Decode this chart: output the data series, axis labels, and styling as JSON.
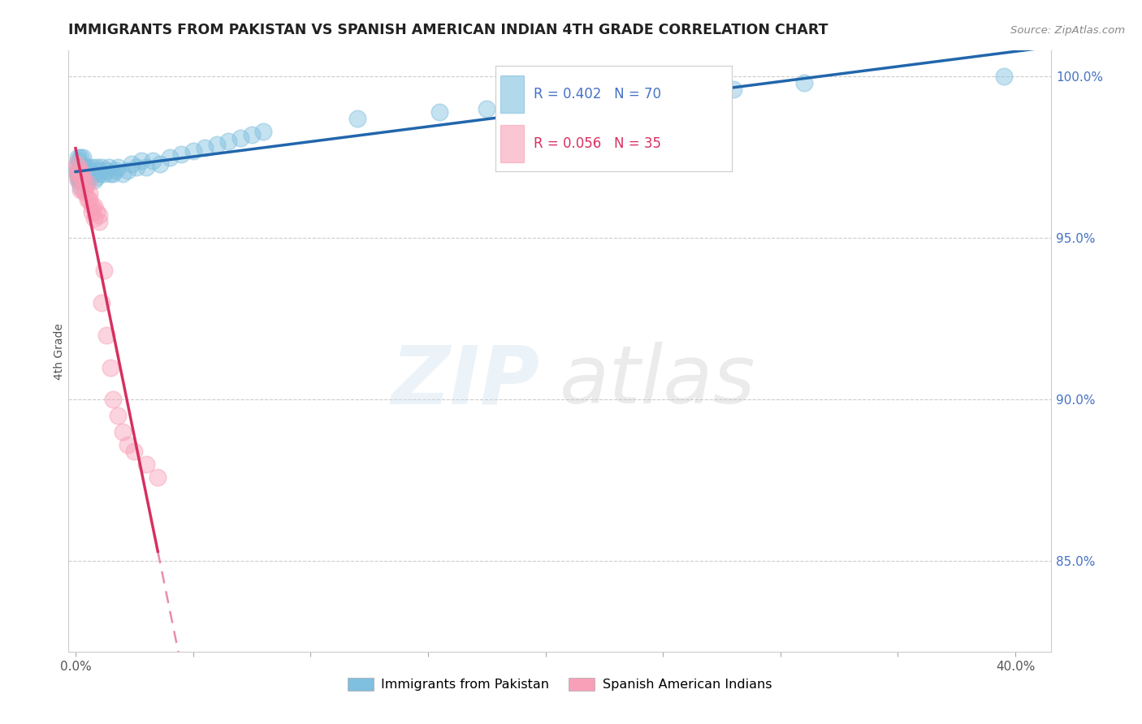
{
  "title": "IMMIGRANTS FROM PAKISTAN VS SPANISH AMERICAN INDIAN 4TH GRADE CORRELATION CHART",
  "source": "Source: ZipAtlas.com",
  "ylabel": "4th Grade",
  "yticks": [
    "85.0%",
    "90.0%",
    "95.0%",
    "100.0%"
  ],
  "ytick_vals": [
    0.85,
    0.9,
    0.95,
    1.0
  ],
  "y_min": 0.822,
  "y_max": 1.008,
  "x_min": -0.003,
  "x_max": 0.415,
  "legend_blue_label": "Immigrants from Pakistan",
  "legend_pink_label": "Spanish American Indians",
  "legend_blue_r": "R = 0.402",
  "legend_blue_n": "N = 70",
  "legend_pink_r": "R = 0.056",
  "legend_pink_n": "N = 35",
  "blue_color": "#7fbfdf",
  "pink_color": "#f8a0b8",
  "blue_line_color": "#2166ac",
  "pink_line_color": "#d63060",
  "blue_scatter_x": [
    0.0005,
    0.0008,
    0.001,
    0.001,
    0.0012,
    0.0015,
    0.0015,
    0.002,
    0.002,
    0.002,
    0.002,
    0.0022,
    0.0025,
    0.003,
    0.003,
    0.003,
    0.003,
    0.003,
    0.0035,
    0.004,
    0.004,
    0.004,
    0.004,
    0.0045,
    0.005,
    0.005,
    0.005,
    0.006,
    0.006,
    0.007,
    0.007,
    0.008,
    0.008,
    0.009,
    0.009,
    0.01,
    0.01,
    0.011,
    0.012,
    0.013,
    0.014,
    0.015,
    0.016,
    0.017,
    0.018,
    0.02,
    0.022,
    0.024,
    0.026,
    0.028,
    0.03,
    0.033,
    0.036,
    0.04,
    0.045,
    0.05,
    0.055,
    0.06,
    0.065,
    0.07,
    0.075,
    0.08,
    0.12,
    0.155,
    0.175,
    0.24,
    0.26,
    0.28,
    0.31,
    0.395
  ],
  "blue_scatter_y": [
    0.972,
    0.97,
    0.969,
    0.975,
    0.968,
    0.971,
    0.974,
    0.97,
    0.968,
    0.972,
    0.975,
    0.966,
    0.969,
    0.97,
    0.971,
    0.972,
    0.968,
    0.975,
    0.97,
    0.968,
    0.971,
    0.972,
    0.969,
    0.97,
    0.972,
    0.97,
    0.968,
    0.971,
    0.969,
    0.972,
    0.97,
    0.968,
    0.97,
    0.969,
    0.972,
    0.97,
    0.971,
    0.972,
    0.97,
    0.971,
    0.972,
    0.97,
    0.97,
    0.971,
    0.972,
    0.97,
    0.971,
    0.973,
    0.972,
    0.974,
    0.972,
    0.974,
    0.973,
    0.975,
    0.976,
    0.977,
    0.978,
    0.979,
    0.98,
    0.981,
    0.982,
    0.983,
    0.987,
    0.989,
    0.99,
    0.994,
    0.995,
    0.996,
    0.998,
    1.0
  ],
  "pink_scatter_x": [
    0.0005,
    0.0008,
    0.001,
    0.001,
    0.0015,
    0.002,
    0.002,
    0.002,
    0.003,
    0.003,
    0.003,
    0.004,
    0.004,
    0.005,
    0.005,
    0.006,
    0.006,
    0.007,
    0.007,
    0.008,
    0.008,
    0.009,
    0.01,
    0.01,
    0.011,
    0.012,
    0.013,
    0.015,
    0.016,
    0.018,
    0.02,
    0.022,
    0.025,
    0.03,
    0.035
  ],
  "pink_scatter_y": [
    0.973,
    0.97,
    0.968,
    0.971,
    0.972,
    0.969,
    0.965,
    0.97,
    0.968,
    0.965,
    0.97,
    0.964,
    0.966,
    0.962,
    0.967,
    0.964,
    0.962,
    0.96,
    0.958,
    0.96,
    0.956,
    0.958,
    0.955,
    0.957,
    0.93,
    0.94,
    0.92,
    0.91,
    0.9,
    0.895,
    0.89,
    0.886,
    0.884,
    0.88,
    0.876
  ]
}
